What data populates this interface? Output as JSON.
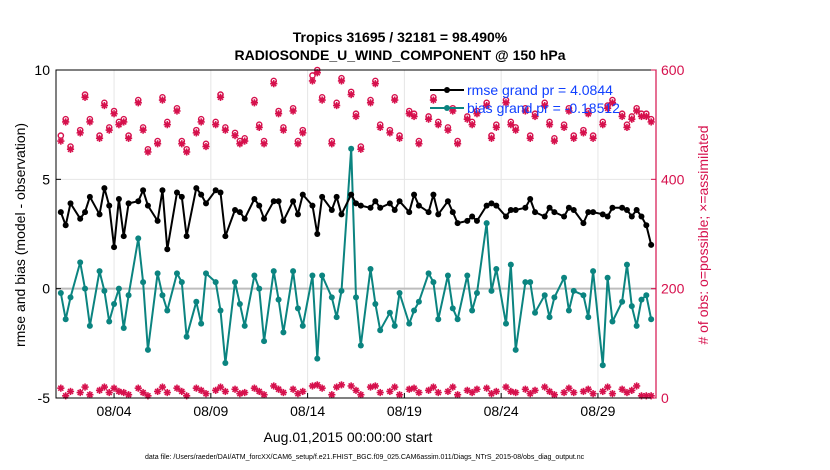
{
  "chart_data": {
    "type": "line",
    "title_line1": "Tropics 31695 / 32181 = 98.490%",
    "title_line2": "RADIOSONDE_U_WIND_COMPONENT @ 150 hPa",
    "xlabel": "Aug.01,2015 00:00:00 start",
    "ylabel_left": "rmse and bias (model - observation)",
    "ylabel_right": "# of obs: o=possible; ×=assimilated",
    "ylim_left": [
      -5,
      10
    ],
    "ylim_right": [
      0,
      600
    ],
    "xlim": [
      1,
      32
    ],
    "x_ticks": [
      {
        "value": 4,
        "label": "08/04"
      },
      {
        "value": 9,
        "label": "08/09"
      },
      {
        "value": 14,
        "label": "08/14"
      },
      {
        "value": 19,
        "label": "08/19"
      },
      {
        "value": 24,
        "label": "08/24"
      },
      {
        "value": 29,
        "label": "08/29"
      }
    ],
    "y_ticks_left": [
      {
        "value": -5,
        "label": "-5"
      },
      {
        "value": 0,
        "label": "0"
      },
      {
        "value": 5,
        "label": "5"
      },
      {
        "value": 10,
        "label": "10"
      }
    ],
    "y_ticks_right": [
      {
        "value": 0,
        "label": "0"
      },
      {
        "value": 200,
        "label": "200"
      },
      {
        "value": 400,
        "label": "400"
      },
      {
        "value": 600,
        "label": "600"
      }
    ],
    "grid": true,
    "legend": {
      "location": "top-right",
      "rmse_label": "rmse grand pr = 4.0844",
      "bias_label": "bias grand pr = -0.18512"
    },
    "colors": {
      "rmse": "#000000",
      "bias": "#0b8480",
      "obs": "#d6114d",
      "zero_line": "#bdbdbd",
      "grid": "#e6e6e6",
      "right_axis": "#d6114d",
      "legend_text": "#1040ff"
    },
    "footer": "data file: /Users/raeder/DAI/ATM_forcXX/CAM6_setup/f.e21.FHIST_BGC.f09_025.CAM6assim.011/Diags_NTrS_2015-08/obs_diag_output.nc",
    "series": [
      {
        "name": "rmse",
        "x": [
          1.25,
          1.5,
          1.75,
          2.25,
          2.5,
          2.75,
          3.25,
          3.5,
          3.75,
          4.0,
          4.25,
          4.5,
          4.75,
          5.25,
          5.5,
          5.75,
          6.25,
          6.5,
          6.75,
          7.25,
          7.5,
          7.75,
          8.25,
          8.5,
          8.75,
          9.25,
          9.5,
          9.75,
          10.25,
          10.5,
          10.75,
          11.25,
          11.5,
          11.75,
          12.25,
          12.5,
          12.75,
          13.25,
          13.5,
          13.75,
          14.25,
          14.5,
          14.75,
          15.25,
          15.5,
          15.75,
          16.25,
          16.5,
          16.75,
          17.25,
          17.5,
          17.75,
          18.25,
          18.5,
          18.75,
          19.25,
          19.5,
          19.75,
          20.25,
          20.5,
          20.75,
          21.25,
          21.5,
          21.75,
          22.25,
          22.5,
          22.75,
          23.25,
          23.5,
          23.75,
          24.25,
          24.5,
          24.75,
          25.25,
          25.5,
          25.75,
          26.25,
          26.5,
          26.75,
          27.25,
          27.5,
          27.75,
          28.25,
          28.5,
          28.75,
          29.25,
          29.5,
          29.75,
          30.25,
          30.5,
          30.75,
          31.0,
          31.25,
          31.5,
          31.75
        ],
        "values": [
          3.5,
          2.9,
          3.9,
          3.2,
          3.5,
          4.2,
          3.4,
          4.6,
          3.8,
          1.9,
          4.1,
          2.4,
          3.9,
          4.0,
          4.5,
          3.8,
          3.1,
          4.5,
          1.8,
          4.4,
          4.2,
          2.4,
          4.6,
          4.3,
          3.9,
          4.5,
          4.4,
          2.4,
          3.6,
          3.5,
          3.2,
          4.1,
          3.8,
          3.2,
          4.0,
          4.0,
          3.1,
          4.0,
          3.4,
          4.3,
          3.8,
          2.5,
          4.2,
          3.6,
          4.2,
          3.4,
          4.3,
          3.9,
          3.8,
          3.7,
          4.0,
          3.7,
          3.9,
          3.6,
          4.0,
          3.5,
          4.3,
          3.8,
          3.5,
          4.3,
          3.4,
          4.0,
          3.5,
          3.0,
          3.1,
          3.3,
          3.1,
          3.8,
          3.9,
          3.8,
          3.3,
          3.6,
          3.6,
          3.7,
          4.1,
          3.5,
          3.3,
          3.7,
          3.5,
          3.3,
          3.7,
          3.6,
          3.0,
          3.5,
          3.5,
          3.4,
          3.3,
          3.7,
          3.7,
          3.6,
          3.3,
          3.6,
          3.3,
          2.9,
          2.0
        ]
      },
      {
        "name": "bias",
        "x": [
          1.25,
          1.5,
          1.75,
          2.25,
          2.5,
          2.75,
          3.25,
          3.5,
          3.75,
          4.0,
          4.25,
          4.5,
          4.75,
          5.25,
          5.5,
          5.75,
          6.25,
          6.5,
          6.75,
          7.25,
          7.5,
          7.75,
          8.25,
          8.5,
          8.75,
          9.25,
          9.5,
          9.75,
          10.25,
          10.5,
          10.75,
          11.25,
          11.5,
          11.75,
          12.25,
          12.5,
          12.75,
          13.25,
          13.5,
          13.75,
          14.25,
          14.5,
          14.75,
          15.25,
          15.5,
          15.75,
          16.25,
          16.5,
          16.75,
          17.25,
          17.5,
          17.75,
          18.25,
          18.5,
          18.75,
          19.25,
          19.5,
          19.75,
          20.25,
          20.5,
          20.75,
          21.25,
          21.5,
          21.75,
          22.25,
          22.5,
          22.75,
          23.25,
          23.5,
          23.75,
          24.25,
          24.5,
          24.75,
          25.25,
          25.5,
          25.75,
          26.25,
          26.5,
          26.75,
          27.25,
          27.5,
          27.75,
          28.25,
          28.5,
          28.75,
          29.25,
          29.5,
          29.75,
          30.25,
          30.5,
          30.75,
          31.0,
          31.25,
          31.5,
          31.75
        ],
        "values": [
          -0.2,
          -1.4,
          -0.4,
          1.2,
          0.0,
          -1.7,
          0.8,
          -0.1,
          -1.5,
          -0.7,
          0.0,
          -1.8,
          -0.3,
          2.3,
          0.3,
          -2.8,
          0.7,
          -0.3,
          -1.0,
          0.7,
          0.3,
          -2.2,
          -0.6,
          -1.6,
          0.7,
          0.3,
          -1.0,
          -3.4,
          0.3,
          -0.7,
          -1.7,
          0.6,
          0.0,
          -2.4,
          0.8,
          -0.5,
          -2.0,
          0.8,
          -0.9,
          -1.7,
          0.6,
          -3.2,
          0.6,
          -0.4,
          -1.3,
          -0.1,
          6.4,
          -0.4,
          -2.6,
          0.9,
          -0.7,
          -1.9,
          -1.1,
          -1.7,
          -0.2,
          -1.6,
          -1.0,
          -0.6,
          0.7,
          0.3,
          -1.4,
          0.6,
          -0.9,
          -1.4,
          0.6,
          -1.0,
          -0.2,
          3.0,
          -0.1,
          0.9,
          -1.6,
          1.1,
          -2.8,
          0.3,
          0.3,
          -1.1,
          -0.3,
          -1.3,
          -0.4,
          0.5,
          -1.0,
          -0.1,
          -0.3,
          -1.3,
          0.8,
          -3.5,
          0.5,
          -1.5,
          -0.6,
          1.1,
          -0.8,
          -1.7,
          -0.5,
          -0.3,
          -1.4
        ]
      },
      {
        "name": "obs_possible",
        "x": [
          1.25,
          1.5,
          1.75,
          2.25,
          2.5,
          2.75,
          3.25,
          3.5,
          3.75,
          4.0,
          4.25,
          4.5,
          4.75,
          5.25,
          5.5,
          5.75,
          6.25,
          6.5,
          6.75,
          7.25,
          7.5,
          7.75,
          8.25,
          8.5,
          8.75,
          9.25,
          9.5,
          9.75,
          10.25,
          10.5,
          10.75,
          11.25,
          11.5,
          11.75,
          12.25,
          12.5,
          12.75,
          13.25,
          13.5,
          13.75,
          14.25,
          14.5,
          14.75,
          15.25,
          15.5,
          15.75,
          16.25,
          16.5,
          16.75,
          17.25,
          17.5,
          17.75,
          18.25,
          18.5,
          18.75,
          19.25,
          19.5,
          19.75,
          20.25,
          20.5,
          20.75,
          21.25,
          21.5,
          21.75,
          22.25,
          22.5,
          22.75,
          23.25,
          23.5,
          23.75,
          24.25,
          24.5,
          24.75,
          25.25,
          25.5,
          25.75,
          26.25,
          26.5,
          26.75,
          27.25,
          27.5,
          27.75,
          28.25,
          28.5,
          28.75,
          29.25,
          29.5,
          29.75,
          30.25,
          30.5,
          30.75,
          31.0,
          31.25,
          31.5,
          31.75
        ],
        "values": [
          480,
          510,
          460,
          490,
          555,
          510,
          480,
          540,
          495,
          525,
          505,
          510,
          480,
          545,
          495,
          455,
          470,
          550,
          505,
          530,
          470,
          455,
          490,
          510,
          465,
          505,
          555,
          495,
          485,
          470,
          475,
          545,
          500,
          470,
          580,
          525,
          495,
          530,
          470,
          490,
          590,
          600,
          550,
          470,
          540,
          585,
          560,
          520,
          460,
          545,
          580,
          500,
          490,
          550,
          480,
          525,
          520,
          470,
          515,
          550,
          505,
          495,
          530,
          470,
          515,
          505,
          525,
          540,
          480,
          500,
          545,
          505,
          495,
          530,
          480,
          520,
          540,
          505,
          475,
          500,
          530,
          480,
          490,
          525,
          480,
          505,
          535,
          545,
          520,
          500,
          515,
          530,
          520,
          520,
          510
        ]
      },
      {
        "name": "obs_assimilated",
        "x": [
          1.25,
          1.5,
          1.75,
          2.25,
          2.5,
          2.75,
          3.25,
          3.5,
          3.75,
          4.0,
          4.25,
          4.5,
          4.75,
          5.25,
          5.5,
          5.75,
          6.25,
          6.5,
          6.75,
          7.25,
          7.5,
          7.75,
          8.25,
          8.5,
          8.75,
          9.25,
          9.5,
          9.75,
          10.25,
          10.5,
          10.75,
          11.25,
          11.5,
          11.75,
          12.25,
          12.5,
          12.75,
          13.25,
          13.5,
          13.75,
          14.25,
          14.5,
          14.75,
          15.25,
          15.5,
          15.75,
          16.25,
          16.5,
          16.75,
          17.25,
          17.5,
          17.75,
          18.25,
          18.5,
          18.75,
          19.25,
          19.5,
          19.75,
          20.25,
          20.5,
          20.75,
          21.25,
          21.5,
          21.75,
          22.25,
          22.5,
          22.75,
          23.25,
          23.5,
          23.75,
          24.25,
          24.5,
          24.75,
          25.25,
          25.5,
          25.75,
          26.25,
          26.5,
          26.75,
          27.25,
          27.5,
          27.75,
          28.25,
          28.5,
          28.75,
          29.25,
          29.5,
          29.75,
          30.25,
          30.5,
          30.75,
          31.0,
          31.25,
          31.5,
          31.75
        ],
        "values": [
          470,
          505,
          455,
          485,
          550,
          505,
          475,
          535,
          490,
          520,
          500,
          505,
          475,
          540,
          490,
          450,
          465,
          545,
          500,
          525,
          465,
          450,
          485,
          505,
          460,
          500,
          550,
          490,
          480,
          465,
          470,
          540,
          495,
          465,
          575,
          520,
          490,
          525,
          465,
          485,
          580,
          595,
          545,
          465,
          535,
          580,
          555,
          515,
          455,
          540,
          575,
          495,
          485,
          545,
          475,
          520,
          515,
          465,
          510,
          545,
          500,
          490,
          525,
          465,
          510,
          500,
          520,
          535,
          475,
          495,
          540,
          500,
          490,
          525,
          475,
          515,
          535,
          500,
          470,
          495,
          525,
          475,
          485,
          520,
          475,
          500,
          530,
          540,
          515,
          495,
          510,
          525,
          515,
          515,
          505
        ]
      },
      {
        "name": "obs_bottom",
        "x": [
          1.25,
          1.5,
          1.75,
          2.25,
          2.5,
          2.75,
          3.25,
          3.5,
          3.75,
          4.0,
          4.25,
          4.5,
          4.75,
          5.25,
          5.5,
          5.75,
          6.25,
          6.5,
          6.75,
          7.25,
          7.5,
          7.75,
          8.25,
          8.5,
          8.75,
          9.25,
          9.5,
          9.75,
          10.25,
          10.5,
          10.75,
          11.25,
          11.5,
          11.75,
          12.25,
          12.5,
          12.75,
          13.25,
          13.5,
          13.75,
          14.25,
          14.5,
          14.75,
          15.25,
          15.5,
          15.75,
          16.25,
          16.5,
          16.75,
          17.25,
          17.5,
          17.75,
          18.25,
          18.5,
          18.75,
          19.25,
          19.5,
          19.75,
          20.25,
          20.5,
          20.75,
          21.25,
          21.5,
          21.75,
          22.25,
          22.5,
          22.75,
          23.25,
          23.5,
          23.75,
          24.25,
          24.5,
          24.75,
          25.25,
          25.5,
          25.75,
          26.25,
          26.5,
          26.75,
          27.25,
          27.5,
          27.75,
          28.25,
          28.5,
          28.75,
          29.25,
          29.5,
          29.75,
          30.25,
          30.5,
          30.75,
          31.0,
          31.25,
          31.5,
          31.75
        ],
        "values": [
          18,
          4,
          12,
          10,
          20,
          6,
          14,
          20,
          10,
          18,
          12,
          10,
          6,
          18,
          10,
          4,
          12,
          20,
          10,
          18,
          12,
          4,
          18,
          14,
          8,
          14,
          20,
          12,
          16,
          8,
          10,
          18,
          12,
          6,
          22,
          16,
          10,
          16,
          8,
          12,
          22,
          24,
          18,
          6,
          20,
          24,
          22,
          14,
          6,
          20,
          22,
          10,
          12,
          20,
          6,
          16,
          18,
          10,
          14,
          20,
          10,
          12,
          20,
          6,
          14,
          10,
          16,
          18,
          8,
          12,
          20,
          12,
          10,
          16,
          8,
          14,
          20,
          12,
          6,
          10,
          18,
          10,
          12,
          16,
          8,
          12,
          20,
          8,
          16,
          10,
          14,
          22,
          4,
          4,
          4
        ]
      }
    ]
  }
}
